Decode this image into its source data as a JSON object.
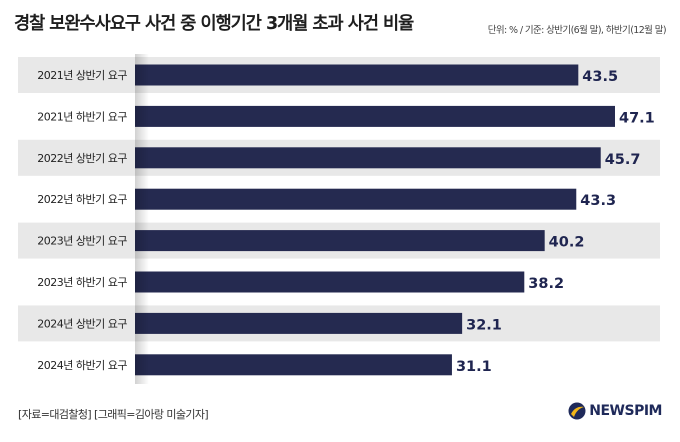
{
  "title": "경찰 보완수사요구 사건 중 이행기간 3개월 초과 사건 비율",
  "unit_note": "단위: % / 기준: 상반기(6월 말), 하반기(12월 말)",
  "footer": {
    "note": "[자료=대검찰청] [그래픽=김아랑 미술기자]",
    "brand": "NEWSPIM"
  },
  "colors": {
    "bar": "#252a50",
    "band": "#e8e8e8",
    "value": "#1f2550"
  },
  "chart_data": {
    "type": "bar",
    "orientation": "horizontal",
    "categories": [
      "2021년 상반기 요구",
      "2021년 하반기 요구",
      "2022년 상반기 요구",
      "2022년 하반기 요구",
      "2023년 상반기 요구",
      "2023년 하반기 요구",
      "2024년 상반기 요구",
      "2024년 하반기 요구"
    ],
    "values": [
      43.5,
      47.1,
      45.7,
      43.3,
      40.2,
      38.2,
      32.1,
      31.1
    ],
    "value_labels": [
      "43.5",
      "47.1",
      "45.7",
      "43.3",
      "40.2",
      "38.2",
      "32.1",
      "31.1"
    ],
    "xlim": [
      0,
      50
    ],
    "grid": false,
    "legend": "none"
  }
}
